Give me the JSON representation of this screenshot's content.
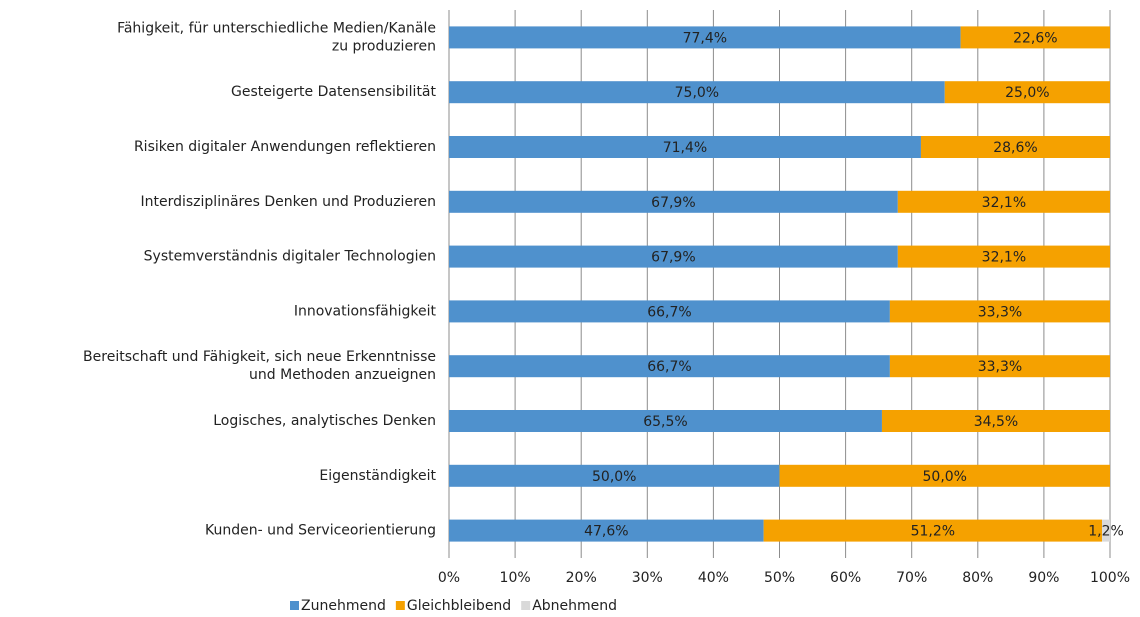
{
  "chart_data": {
    "type": "stacked-bar-horizontal",
    "categories": [
      "Fähigkeit, für unterschiedliche Medien/Kanäle\nzu produzieren",
      "Gesteigerte Datensensibilität",
      "Risiken digitaler Anwendungen reflektieren",
      "Interdisziplinäres Denken und Produzieren",
      "Systemverständnis digitaler Technologien",
      "Innovationsfähigkeit",
      "Bereitschaft und Fähigkeit, sich neue Erkenntnisse\nund Methoden anzueignen",
      "Logisches, analytisches Denken",
      "Eigenständigkeit",
      "Kunden- und Serviceorientierung"
    ],
    "series": [
      {
        "name": "Zunehmend",
        "color": "#4f91cd",
        "values": [
          77.4,
          75.0,
          71.4,
          67.9,
          67.9,
          66.7,
          66.7,
          65.5,
          50.0,
          47.6
        ],
        "value_labels": [
          "77,4%",
          "75,0%",
          "71,4%",
          "67,9%",
          "67,9%",
          "66,7%",
          "66,7%",
          "65,5%",
          "50,0%",
          "47,6%"
        ]
      },
      {
        "name": "Gleichbleibend",
        "color": "#f5a100",
        "values": [
          22.6,
          25.0,
          28.6,
          32.1,
          32.1,
          33.3,
          33.3,
          34.5,
          50.0,
          51.2
        ],
        "value_labels": [
          "22,6%",
          "25,0%",
          "28,6%",
          "32,1%",
          "32,1%",
          "33,3%",
          "33,3%",
          "34,5%",
          "50,0%",
          "51,2%"
        ]
      },
      {
        "name": "Abnehmend",
        "color": "#d9d9d9",
        "values": [
          0,
          0,
          0,
          0,
          0,
          0,
          0,
          0,
          0,
          1.2
        ],
        "value_labels": [
          null,
          null,
          null,
          null,
          null,
          null,
          null,
          null,
          null,
          "1,2%"
        ]
      }
    ],
    "xlim": [
      0,
      100
    ],
    "xticks": [
      {
        "value": 0,
        "label": "0%"
      },
      {
        "value": 10,
        "label": "10%"
      },
      {
        "value": 20,
        "label": "20%"
      },
      {
        "value": 30,
        "label": "30%"
      },
      {
        "value": 40,
        "label": "40%"
      },
      {
        "value": 50,
        "label": "50%"
      },
      {
        "value": 60,
        "label": "60%"
      },
      {
        "value": 70,
        "label": "70%"
      },
      {
        "value": 80,
        "label": "80%"
      },
      {
        "value": 90,
        "label": "90%"
      },
      {
        "value": 100,
        "label": "100%"
      }
    ],
    "grid": true,
    "legend": "bottom"
  }
}
